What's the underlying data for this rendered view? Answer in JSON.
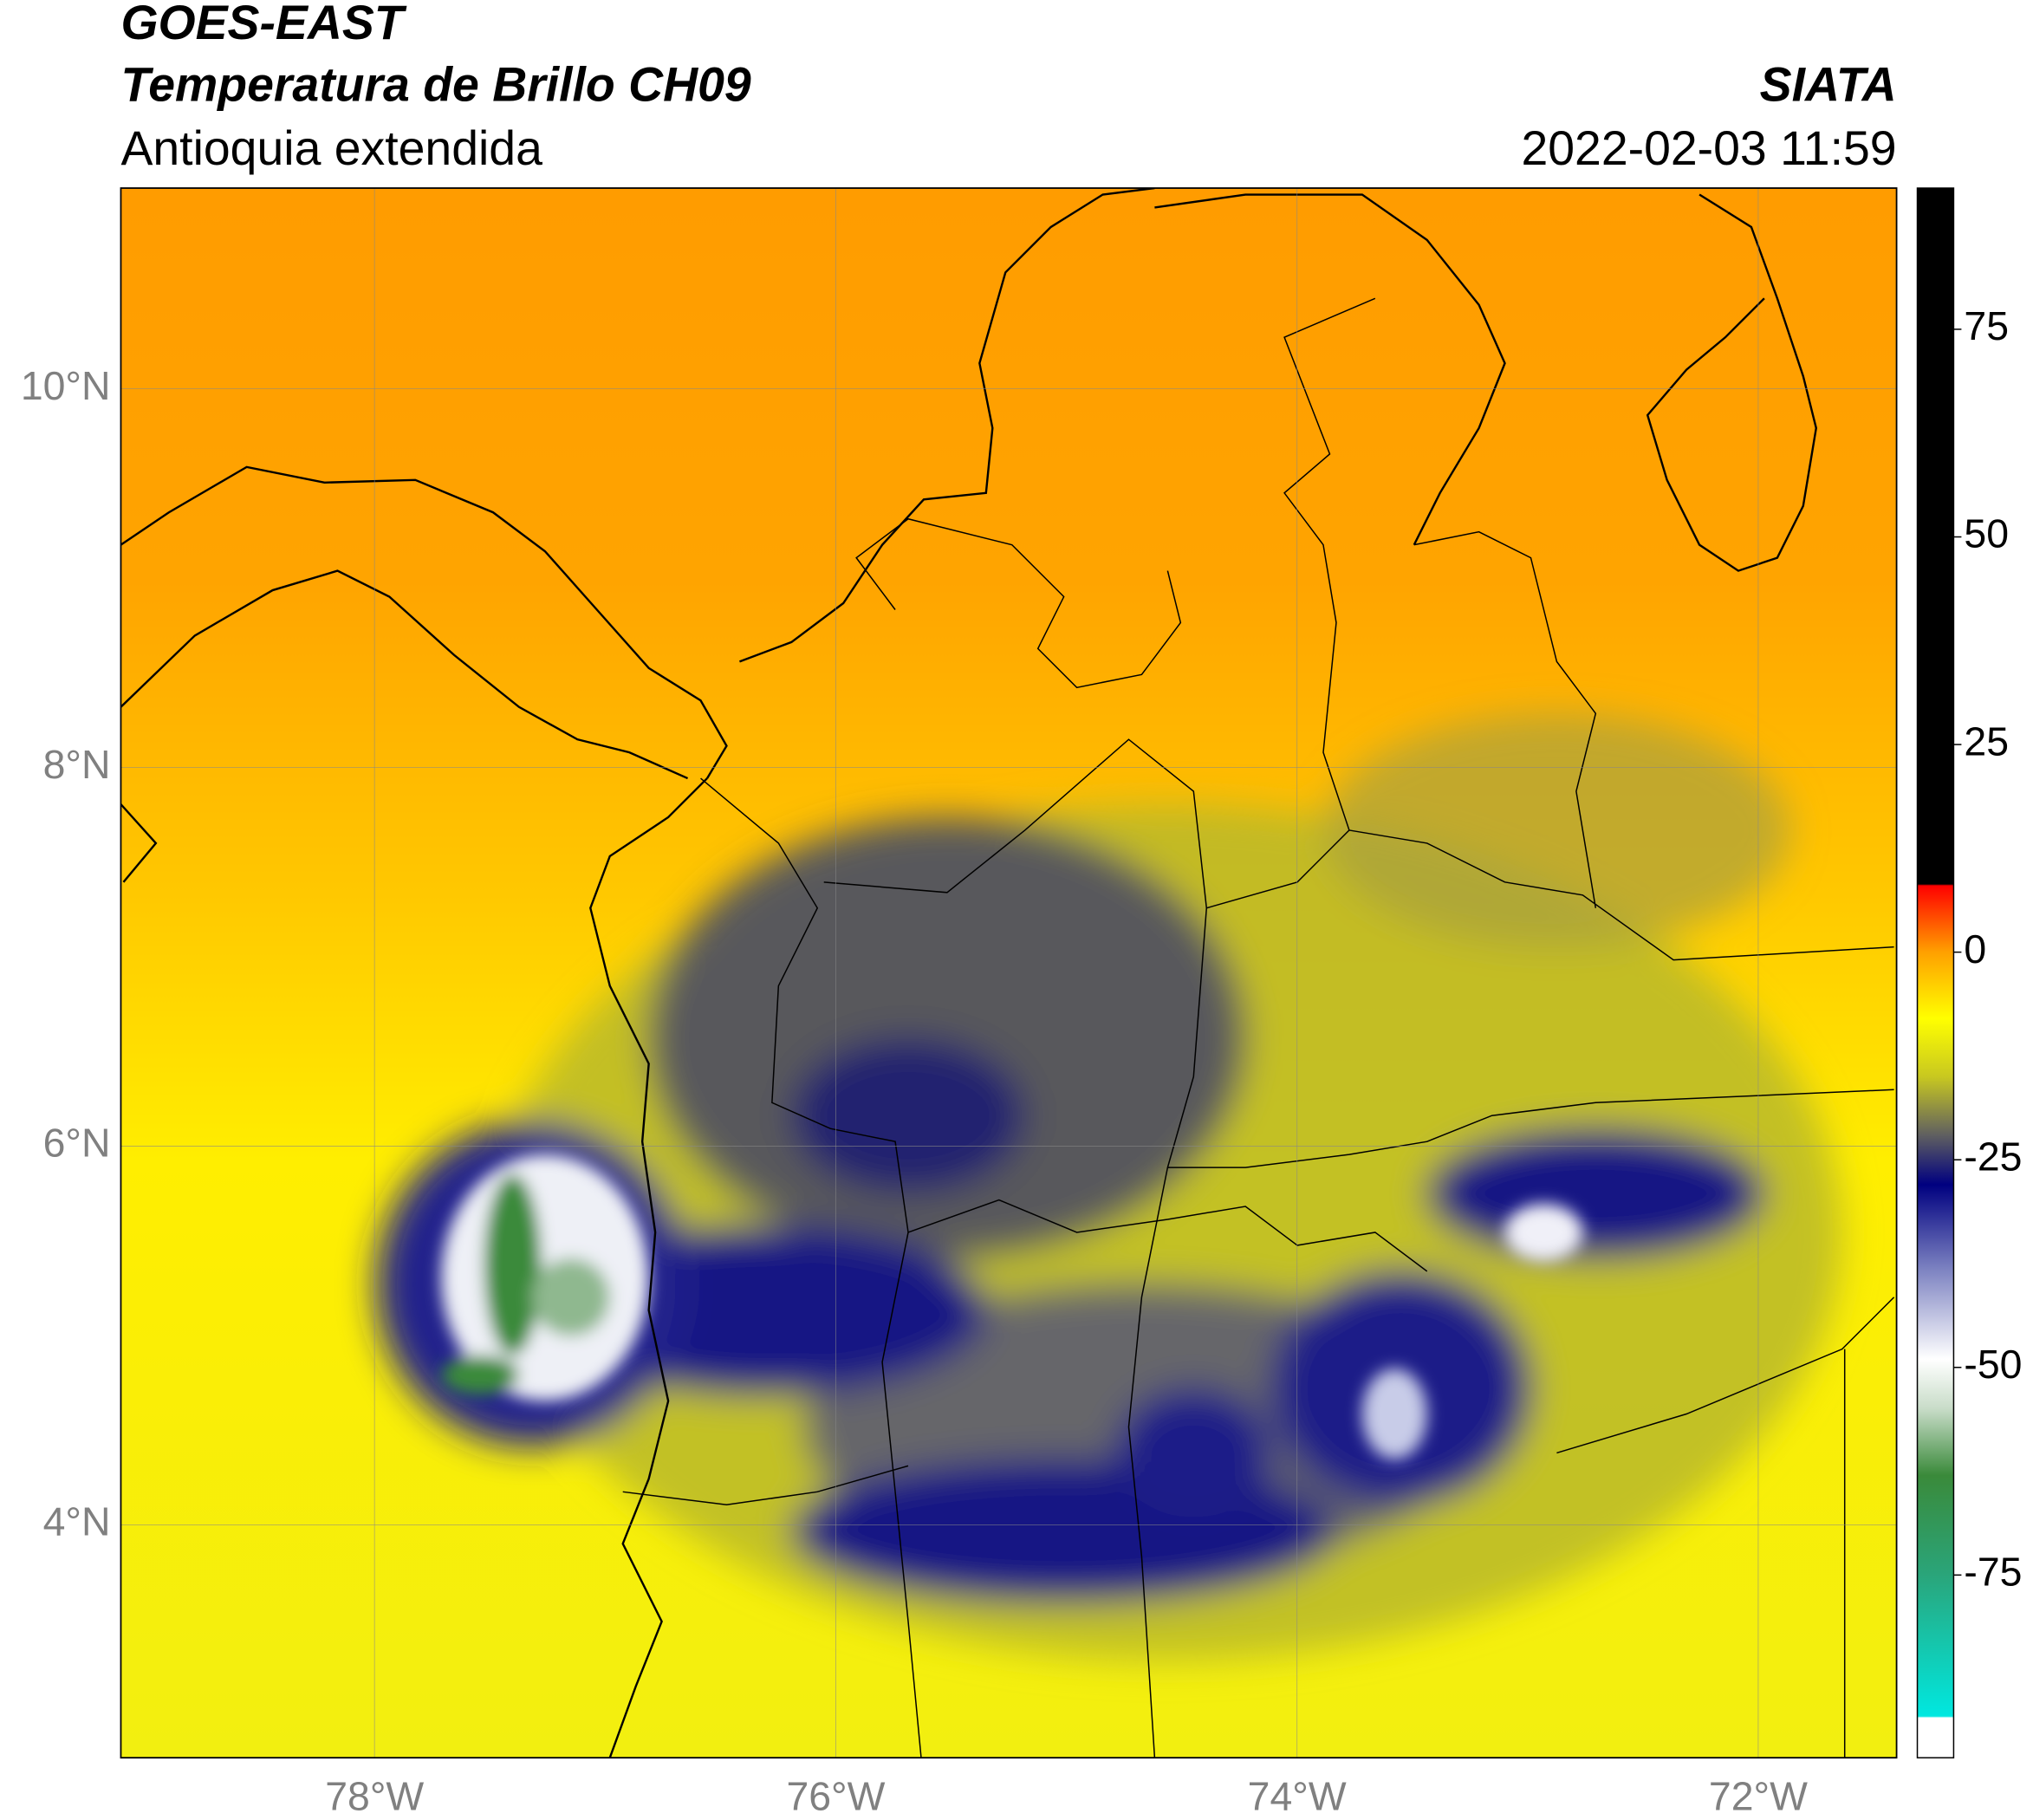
{
  "header": {
    "satellite": "GOES-EAST",
    "product": "Temperatura de Brillo CH09",
    "region": "Antioquia extendida",
    "agency": "SIATA",
    "datetime": "2022-02-03 11:59"
  },
  "map": {
    "lonlim": [
      -79.1,
      -71.4
    ],
    "latlim": [
      2.77,
      11.06
    ],
    "lonticks": [
      {
        "value": -78,
        "label": "78°W"
      },
      {
        "value": -76,
        "label": "76°W"
      },
      {
        "value": -74,
        "label": "74°W"
      },
      {
        "value": -72,
        "label": "72°W"
      }
    ],
    "latticks": [
      {
        "value": 10,
        "label": "10°N"
      },
      {
        "value": 8,
        "label": "8°N"
      },
      {
        "value": 6,
        "label": "6°N"
      },
      {
        "value": 4,
        "label": "4°N"
      }
    ],
    "grid": true
  },
  "colorbar": {
    "lim": [
      -97,
      92
    ],
    "ticks": [
      75,
      50,
      25,
      0,
      -25,
      -50,
      -75
    ],
    "stops": [
      {
        "value": -97,
        "color": "#ffffff"
      },
      {
        "value": -92.2,
        "color": "#ffffff"
      },
      {
        "value": -92,
        "color": "#00e8e0"
      },
      {
        "value": -75,
        "color": "#2aa57a"
      },
      {
        "value": -63,
        "color": "#3a8a3a"
      },
      {
        "value": -55,
        "color": "#c8dcc8"
      },
      {
        "value": -49,
        "color": "#ffffff"
      },
      {
        "value": -38,
        "color": "#7a80c0"
      },
      {
        "value": -28,
        "color": "#000080"
      },
      {
        "value": -22,
        "color": "#606060"
      },
      {
        "value": -15,
        "color": "#c8c820"
      },
      {
        "value": -8,
        "color": "#ffff00"
      },
      {
        "value": 0,
        "color": "#ffa000"
      },
      {
        "value": 8,
        "color": "#ff0000"
      },
      {
        "value": 8.2,
        "color": "#000000"
      },
      {
        "value": 92,
        "color": "#000000"
      }
    ]
  }
}
